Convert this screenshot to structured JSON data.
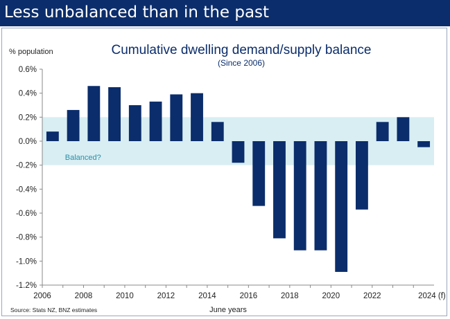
{
  "header": {
    "title": "Less unbalanced than in the past"
  },
  "footer": {
    "source": "Source: Stats NZ, BNZ estimates"
  },
  "colors": {
    "header_bg": "#0b2d6b",
    "bar": "#0b2d6b",
    "band": "#d8eef3",
    "band_label": "#2a8fa8"
  },
  "chart_data": {
    "type": "bar",
    "title": "Cumulative dwelling demand/supply balance",
    "subtitle": "(Since 2006)",
    "ylabel": "% population",
    "xlabel": "June years",
    "x": [
      2006,
      2007,
      2008,
      2009,
      2010,
      2011,
      2012,
      2013,
      2014,
      2015,
      2016,
      2017,
      2018,
      2019,
      2020,
      2021,
      2022,
      2023,
      2024
    ],
    "values": [
      0.08,
      0.26,
      0.46,
      0.45,
      0.3,
      0.33,
      0.39,
      0.4,
      0.16,
      -0.18,
      -0.54,
      -0.81,
      -0.91,
      -0.91,
      -1.09,
      -0.57,
      0.16,
      0.2,
      -0.05
    ],
    "ylim": [
      -1.2,
      0.6
    ],
    "yticks": [
      "0.6%",
      "0.4%",
      "0.2%",
      "0.0%",
      "-0.2%",
      "-0.4%",
      "-0.6%",
      "-0.8%",
      "-1.0%",
      "-1.2%"
    ],
    "ytick_values": [
      0.6,
      0.4,
      0.2,
      0.0,
      -0.2,
      -0.4,
      -0.6,
      -0.8,
      -1.0,
      -1.2
    ],
    "xticks": [
      "2006",
      "2008",
      "2010",
      "2012",
      "2014",
      "2016",
      "2018",
      "2020",
      "2022",
      "2024 (f)"
    ],
    "xtick_values": [
      2006,
      2008,
      2010,
      2012,
      2014,
      2016,
      2018,
      2020,
      2022,
      2024
    ],
    "band": {
      "label": "Balanced?",
      "from": -0.2,
      "to": 0.2
    },
    "grid": false,
    "legend": "none"
  }
}
